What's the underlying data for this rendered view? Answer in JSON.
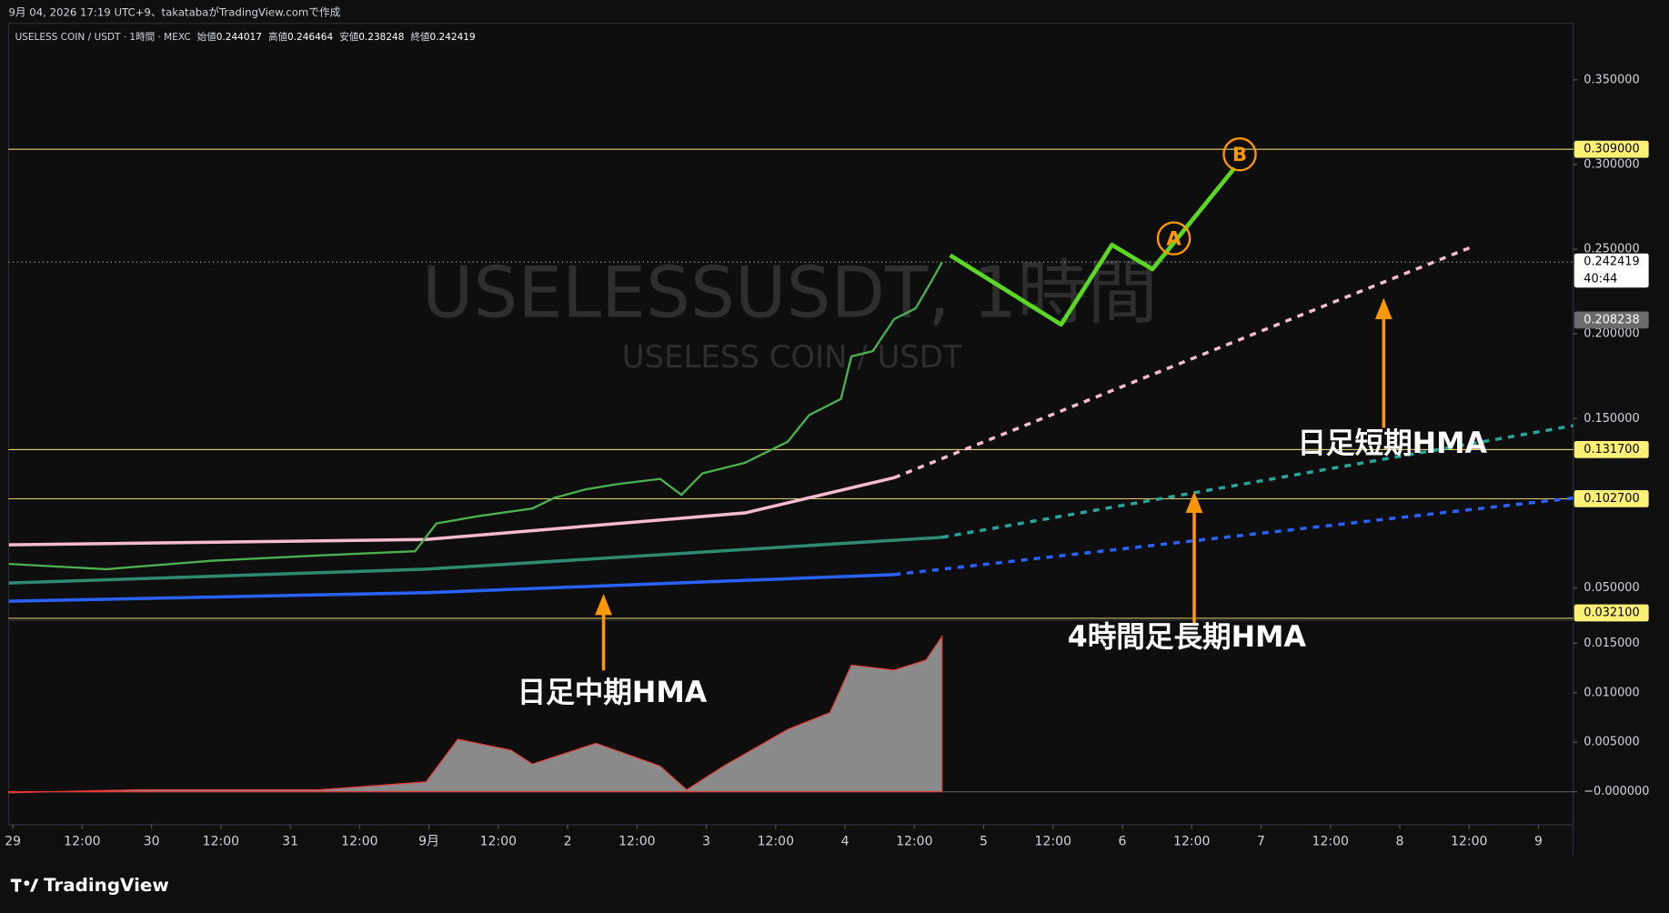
{
  "header": {
    "caption": "9月 04, 2026 17:19 UTC+9、takatabaがTradingView.comで作成",
    "symbol": "USELESS COIN / USDT · 1時間 · MEXC",
    "ohlc": [
      {
        "label": "始値",
        "value": 0.244017
      },
      {
        "label": "高値",
        "value": 0.246464
      },
      {
        "label": "安値",
        "value": 0.238248
      },
      {
        "label": "終値",
        "value": 0.242419
      }
    ]
  },
  "watermark": {
    "title": "USELESSUSDT, 1時間",
    "subtitle": "USELESS COIN / USDT"
  },
  "footer": {
    "brand": "TradingView"
  },
  "chart_data": [
    {
      "type": "line",
      "xlim": [
        -0.74,
        270.0
      ],
      "ylim": [
        0.0315,
        0.3833
      ],
      "xticks": [
        {
          "value": 0,
          "label": "29"
        },
        {
          "value": 12,
          "label": "12:00"
        },
        {
          "value": 24,
          "label": "30"
        },
        {
          "value": 36,
          "label": "12:00"
        },
        {
          "value": 48,
          "label": "31"
        },
        {
          "value": 60,
          "label": "12:00"
        },
        {
          "value": 72,
          "label": "9月"
        },
        {
          "value": 84,
          "label": "12:00"
        },
        {
          "value": 96,
          "label": "2"
        },
        {
          "value": 108,
          "label": "12:00"
        },
        {
          "value": 120,
          "label": "3"
        },
        {
          "value": 132,
          "label": "12:00"
        },
        {
          "value": 144,
          "label": "4"
        },
        {
          "value": 156,
          "label": "12:00"
        },
        {
          "value": 168,
          "label": "5"
        },
        {
          "value": 180,
          "label": "12:00"
        },
        {
          "value": 192,
          "label": "6"
        },
        {
          "value": 204,
          "label": "12:00"
        },
        {
          "value": 216,
          "label": "7"
        },
        {
          "value": 228,
          "label": "12:00"
        },
        {
          "value": 240,
          "label": "8"
        },
        {
          "value": 252,
          "label": "12:00"
        },
        {
          "value": 264,
          "label": "9"
        }
      ],
      "yticks": [
        {
          "value": 0.35,
          "label": "0.350000"
        },
        {
          "value": 0.3,
          "label": "0.300000"
        },
        {
          "value": 0.25,
          "label": "0.250000"
        },
        {
          "value": 0.2,
          "label": "0.200000"
        },
        {
          "value": 0.15,
          "label": "0.150000"
        },
        {
          "value": 0.05,
          "label": "0.050000"
        }
      ],
      "levels": [
        {
          "value": 0.309,
          "label": "0.309000"
        },
        {
          "value": 0.1317,
          "label": "0.131700"
        },
        {
          "value": 0.1027,
          "label": "0.102700"
        },
        {
          "value": 0.0321,
          "label": "0.032100"
        }
      ],
      "level_color": "#fff176",
      "last_price": 0.242419,
      "countdown": "40:44",
      "marker_price": 0.208238,
      "series": [
        {
          "color": "#f8bbd0",
          "style": "solid",
          "width": 3,
          "x": [
            -0.7,
            71.5,
            126.7,
            152.5
          ],
          "values": [
            0.0755,
            0.0786,
            0.0943,
            0.1151
          ]
        },
        {
          "color": "#f8bbd0",
          "style": "dashed",
          "width": 3,
          "x": [
            152.5,
            252.5
          ],
          "values": [
            0.1151,
            0.2514
          ]
        },
        {
          "color": "#2e8b72",
          "style": "solid",
          "width": 3,
          "x": [
            -0.7,
            71.5,
            160.8
          ],
          "values": [
            0.0529,
            0.0611,
            0.0799
          ]
        },
        {
          "color": "#26a69a",
          "style": "dashed",
          "width": 3,
          "x": [
            160.8,
            270.0
          ],
          "values": [
            0.0799,
            0.1458
          ]
        },
        {
          "color": "#2962ff",
          "style": "solid",
          "width": 3,
          "x": [
            -0.7,
            71.5,
            152.5
          ],
          "values": [
            0.0422,
            0.0472,
            0.0579
          ]
        },
        {
          "color": "#2962ff",
          "style": "dashed",
          "width": 3,
          "x": [
            152.5,
            270.0
          ],
          "values": [
            0.0579,
            0.1031
          ]
        },
        {
          "color": "#4caf50",
          "style": "solid",
          "width": 2,
          "x": [
            -0.7,
            16.2,
            34.6,
            53.0,
            69.6,
            73.3,
            80.7,
            89.9,
            93.6,
            99.1,
            104.6,
            112.0,
            115.7,
            119.3,
            126.7,
            134.1,
            137.8,
            143.3,
            145.1,
            148.8,
            152.5,
            156.2,
            158.9,
            160.8
          ],
          "values": [
            0.0642,
            0.0611,
            0.0661,
            0.0692,
            0.0717,
            0.0881,
            0.0925,
            0.0969,
            0.1031,
            0.1082,
            0.1113,
            0.1144,
            0.105,
            0.1176,
            0.1239,
            0.1364,
            0.1521,
            0.1616,
            0.1867,
            0.1898,
            0.2087,
            0.215,
            0.2307,
            0.2424
          ]
        },
        {
          "color": "#5ad824",
          "style": "solid",
          "width": 4,
          "x": [
            162.2,
            181.4,
            190.2,
            197.2,
            211.4
          ],
          "values": [
            0.2464,
            0.2055,
            0.2526,
            0.2382,
            0.2979
          ]
        }
      ],
      "markers": [
        {
          "label": "A",
          "x": 200.9,
          "y": 0.2564
        },
        {
          "label": "B",
          "x": 212.3,
          "y": 0.306
        }
      ],
      "marker_color": "#ff9800",
      "annotations": [
        "日足短期HMA",
        "4時間足長期HMA",
        "日足中期HMA"
      ]
    },
    {
      "type": "area",
      "color": "#8a8a8a",
      "xlim": [
        -0.74,
        270.0
      ],
      "ylim": [
        -0.00333,
        0.0171
      ],
      "yticks": [
        {
          "value": 0.015,
          "label": "0.015000"
        },
        {
          "value": 0.01,
          "label": "0.010000"
        },
        {
          "value": 0.005,
          "label": "0.005000"
        },
        {
          "value": 0,
          "label": "−0.000000"
        }
      ],
      "x": [
        -0.7,
        21.7,
        53.0,
        71.5,
        77.0,
        86.2,
        89.9,
        100.9,
        112.0,
        116.6,
        123.0,
        134.1,
        141.4,
        145.1,
        152.5,
        158.0,
        160.8
      ],
      "values": [
        -0.0001,
        0.0002,
        0.0002,
        0.001,
        0.0053,
        0.0042,
        0.0028,
        0.0049,
        0.0026,
        0.0002,
        0.0026,
        0.0063,
        0.008,
        0.0128,
        0.0123,
        0.0133,
        0.0157
      ]
    }
  ]
}
